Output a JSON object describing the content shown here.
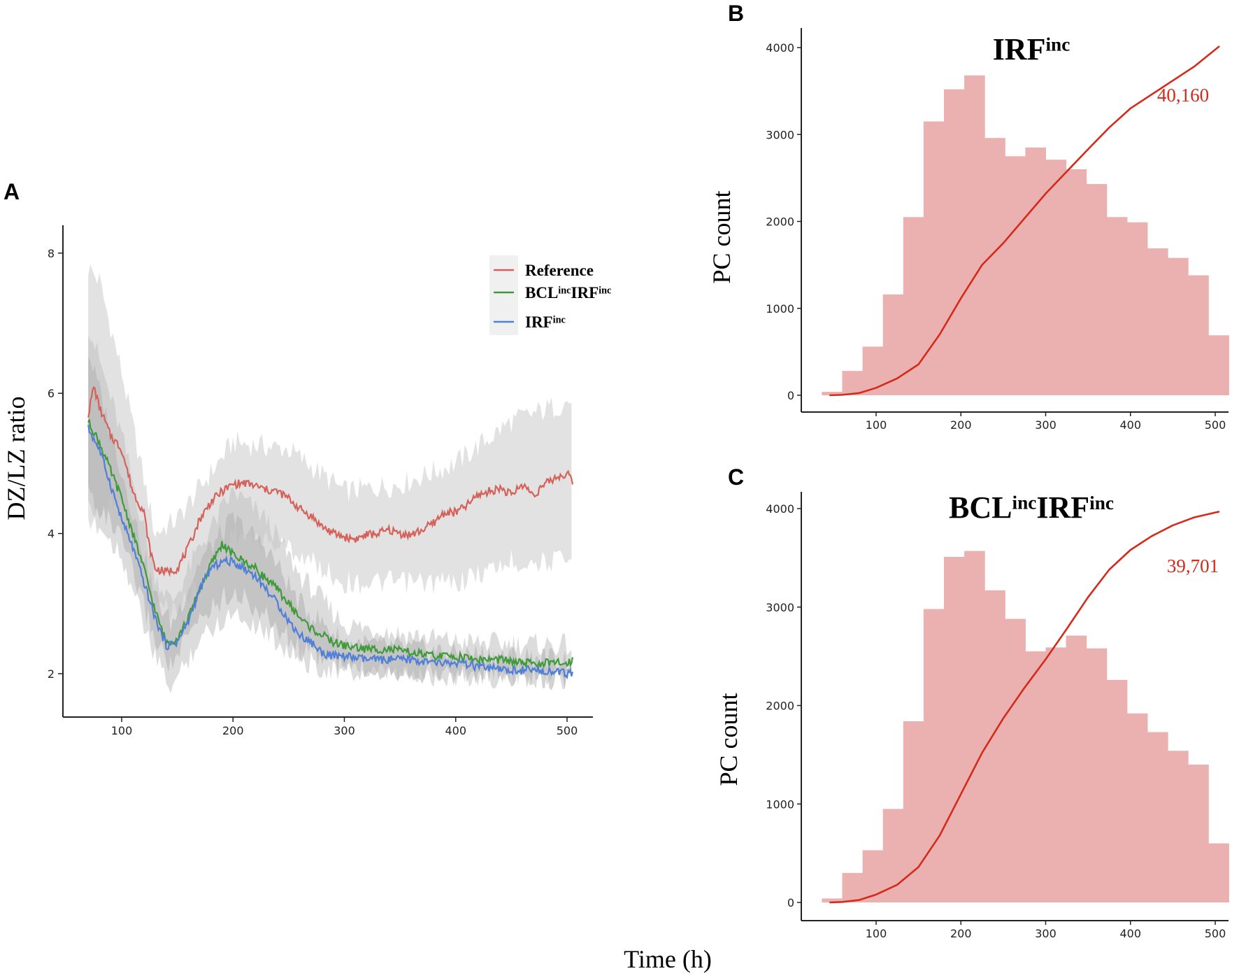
{
  "labels": {
    "panel_a": "A",
    "panel_b": "B",
    "panel_c": "C",
    "shared_xlabel": "Time (h)"
  },
  "chart_data": [
    {
      "id": "A",
      "type": "line",
      "title": "",
      "xlabel": "Time (h)",
      "ylabel": "DZ/LZ ratio",
      "xlim": [
        65,
        505
      ],
      "ylim": [
        1.7,
        8.4
      ],
      "xticks": [
        100,
        200,
        300,
        400,
        500
      ],
      "yticks": [
        2,
        4,
        6,
        8
      ],
      "grid": false,
      "legend_position": "top-right",
      "series": [
        {
          "name": "Reference",
          "name_main": "Reference",
          "color": "#d4625a",
          "x": [
            70,
            75,
            80,
            90,
            100,
            110,
            120,
            125,
            130,
            140,
            150,
            160,
            170,
            180,
            190,
            200,
            210,
            220,
            230,
            240,
            250,
            260,
            270,
            280,
            290,
            300,
            310,
            320,
            330,
            340,
            350,
            360,
            370,
            380,
            390,
            400,
            410,
            420,
            430,
            440,
            450,
            460,
            470,
            480,
            490,
            500,
            505
          ],
          "y": [
            5.7,
            6.1,
            5.8,
            5.4,
            5.2,
            4.6,
            4.3,
            3.8,
            3.5,
            3.45,
            3.5,
            3.8,
            4.2,
            4.45,
            4.6,
            4.7,
            4.72,
            4.68,
            4.62,
            4.6,
            4.5,
            4.35,
            4.25,
            4.1,
            4.0,
            3.95,
            3.92,
            3.98,
            4.0,
            4.05,
            4.0,
            3.98,
            4.05,
            4.15,
            4.3,
            4.3,
            4.4,
            4.55,
            4.6,
            4.65,
            4.55,
            4.7,
            4.55,
            4.7,
            4.8,
            4.85,
            4.75
          ],
          "band_x": [
            70,
            80,
            100,
            130,
            150,
            200,
            250,
            300,
            350,
            400,
            450,
            505
          ],
          "band_lower": [
            4.1,
            4.3,
            4.5,
            3.0,
            2.9,
            4.0,
            3.8,
            3.3,
            3.3,
            3.3,
            3.6,
            3.6
          ],
          "band_upper": [
            7.8,
            7.6,
            6.3,
            4.0,
            4.2,
            5.3,
            5.2,
            4.6,
            4.7,
            5.0,
            5.6,
            5.9
          ]
        },
        {
          "name": "BCLincIRFinc",
          "name_main": "BCL",
          "name_sup": "inc",
          "name_main2": "IRF",
          "name_sup2": "inc",
          "color": "#3f9a3a",
          "x": [
            70,
            80,
            90,
            100,
            110,
            120,
            130,
            140,
            150,
            160,
            170,
            180,
            190,
            200,
            210,
            220,
            230,
            240,
            250,
            260,
            270,
            280,
            290,
            300,
            320,
            340,
            360,
            380,
            400,
            420,
            440,
            460,
            480,
            500,
            505
          ],
          "y": [
            5.6,
            5.3,
            4.9,
            4.5,
            4.0,
            3.5,
            2.9,
            2.45,
            2.5,
            2.8,
            3.2,
            3.55,
            3.85,
            3.7,
            3.6,
            3.5,
            3.35,
            3.2,
            3.0,
            2.8,
            2.65,
            2.55,
            2.45,
            2.4,
            2.35,
            2.35,
            2.3,
            2.25,
            2.25,
            2.2,
            2.2,
            2.15,
            2.15,
            2.15,
            2.2
          ],
          "band_x": [
            70,
            100,
            130,
            145,
            170,
            200,
            230,
            260,
            300,
            400,
            505
          ],
          "band_lower": [
            4.3,
            3.7,
            2.2,
            1.8,
            2.5,
            2.9,
            2.6,
            2.2,
            2.0,
            1.95,
            1.95
          ],
          "band_upper": [
            7.0,
            5.4,
            3.4,
            3.0,
            3.8,
            4.6,
            4.2,
            3.4,
            2.7,
            2.45,
            2.4
          ]
        },
        {
          "name": "IRFinc",
          "name_main": "IRF",
          "name_sup": "inc",
          "color": "#4f7fd6",
          "x": [
            70,
            80,
            90,
            100,
            110,
            120,
            130,
            140,
            150,
            160,
            170,
            180,
            190,
            200,
            210,
            220,
            230,
            240,
            250,
            260,
            270,
            280,
            290,
            300,
            320,
            340,
            360,
            380,
            400,
            420,
            440,
            460,
            480,
            500,
            505
          ],
          "y": [
            5.5,
            5.2,
            4.7,
            4.2,
            3.8,
            3.3,
            2.8,
            2.4,
            2.45,
            2.75,
            3.2,
            3.5,
            3.6,
            3.6,
            3.5,
            3.4,
            3.2,
            3.0,
            2.75,
            2.55,
            2.45,
            2.3,
            2.25,
            2.25,
            2.2,
            2.2,
            2.2,
            2.15,
            2.15,
            2.1,
            2.05,
            2.05,
            2.05,
            2.0,
            2.0
          ],
          "band_x": [
            70,
            100,
            130,
            145,
            170,
            200,
            230,
            260,
            300,
            400,
            505
          ],
          "band_lower": [
            4.6,
            3.9,
            2.5,
            2.1,
            2.8,
            3.2,
            2.8,
            2.35,
            2.1,
            2.0,
            1.9
          ],
          "band_upper": [
            6.6,
            4.9,
            3.1,
            2.7,
            3.6,
            4.2,
            3.8,
            3.0,
            2.45,
            2.3,
            2.2
          ]
        }
      ]
    },
    {
      "id": "B",
      "type": "bar",
      "title_main": "IRF",
      "title_sup": "inc",
      "xlabel": "Time (h)",
      "ylabel": "PC count",
      "xlim": [
        10,
        520
      ],
      "ylim": [
        -200,
        4200
      ],
      "xticks": [
        100,
        200,
        300,
        400,
        500
      ],
      "yticks": [
        0,
        1000,
        2000,
        3000,
        4000
      ],
      "grid": false,
      "bin_start": 36,
      "bin_width": 24,
      "values": [
        40,
        280,
        560,
        1160,
        2050,
        3150,
        3520,
        3680,
        2960,
        2750,
        2850,
        2710,
        2600,
        2430,
        2050,
        1990,
        1690,
        1580,
        1380,
        690
      ],
      "bar_color": "#ebb1b1",
      "curve": {
        "color": "#d42a1a",
        "x": [
          45,
          60,
          80,
          100,
          125,
          150,
          175,
          200,
          225,
          250,
          275,
          300,
          325,
          350,
          375,
          400,
          425,
          450,
          475,
          505
        ],
        "y": [
          0,
          5,
          25,
          85,
          195,
          355,
          700,
          1115,
          1500,
          1750,
          2035,
          2320,
          2575,
          2830,
          3080,
          3300,
          3460,
          3620,
          3780,
          4016
        ]
      },
      "annotation": "40,160"
    },
    {
      "id": "C",
      "type": "bar",
      "title_main": "BCL",
      "title_sup": "inc",
      "title_main2": "IRF",
      "title_sup2": "inc",
      "xlabel": "Time (h)",
      "ylabel": "PC count",
      "xlim": [
        10,
        520
      ],
      "ylim": [
        -200,
        4200
      ],
      "xticks": [
        100,
        200,
        300,
        400,
        500
      ],
      "yticks": [
        0,
        1000,
        2000,
        3000,
        4000
      ],
      "grid": false,
      "bin_start": 36,
      "bin_width": 24,
      "values": [
        40,
        300,
        530,
        950,
        1840,
        2980,
        3510,
        3570,
        3170,
        2880,
        2550,
        2590,
        2710,
        2580,
        2260,
        1920,
        1730,
        1540,
        1400,
        600
      ],
      "bar_color": "#ebb1b1",
      "curve": {
        "color": "#d42a1a",
        "x": [
          45,
          60,
          80,
          100,
          125,
          150,
          175,
          200,
          225,
          250,
          275,
          300,
          325,
          350,
          375,
          400,
          425,
          450,
          475,
          505
        ],
        "y": [
          0,
          5,
          25,
          80,
          180,
          360,
          680,
          1100,
          1520,
          1870,
          2180,
          2470,
          2780,
          3100,
          3380,
          3580,
          3720,
          3830,
          3910,
          3970
        ]
      },
      "annotation": "39,701"
    }
  ]
}
